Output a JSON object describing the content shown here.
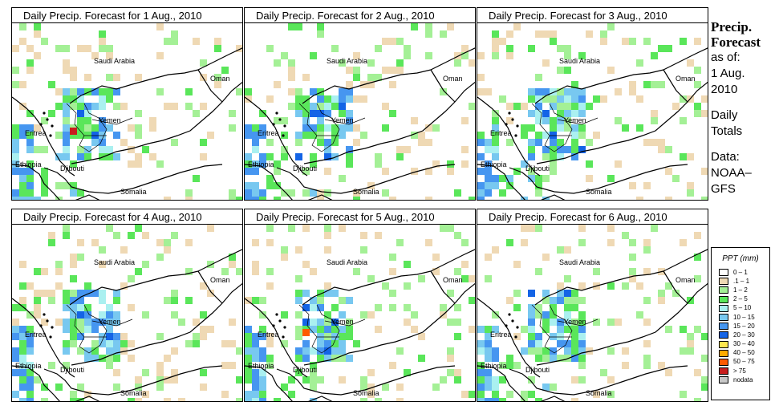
{
  "panels": [
    {
      "title": "Daily Precip. Forecast for  1 Aug., 2010",
      "seed": 11
    },
    {
      "title": "Daily Precip. Forecast for  2 Aug., 2010",
      "seed": 27
    },
    {
      "title": "Daily Precip. Forecast for  3 Aug., 2010",
      "seed": 43
    },
    {
      "title": "Daily Precip. Forecast for  4 Aug., 2010",
      "seed": 59
    },
    {
      "title": "Daily Precip. Forecast for  5 Aug., 2010",
      "seed": 71
    },
    {
      "title": "Daily Precip. Forecast for  6 Aug., 2010",
      "seed": 89
    }
  ],
  "map_labels": {
    "saudi": "Saudi Arabia",
    "oman": "Oman",
    "yemen": "Yemen",
    "eritrea": "Eritrea",
    "ethiopia": "Ethiopia",
    "djibouti": "Djibouti",
    "somalia": "Somalia"
  },
  "side": {
    "title_line1": "Precip.",
    "title_line2": "Forecast",
    "asof": "as of:",
    "date_line1": "1 Aug.",
    "date_line2": "2010",
    "totals_line1": "Daily",
    "totals_line2": "Totals",
    "data_line1": "Data:",
    "data_line2": "NOAA–",
    "data_line3": "GFS"
  },
  "legend": {
    "title": "PPT (mm)",
    "items": [
      {
        "label": "0 – 1",
        "color": "#ffffff"
      },
      {
        "label": ".1 – 1",
        "color": "#efd9b4"
      },
      {
        "label": "1 – 2",
        "color": "#a4f096"
      },
      {
        "label": "2 – 5",
        "color": "#5ae65a"
      },
      {
        "label": "5 – 10",
        "color": "#aaf0f0"
      },
      {
        "label": "10 – 15",
        "color": "#78c8f0"
      },
      {
        "label": "15 – 20",
        "color": "#4696f0"
      },
      {
        "label": "20 – 30",
        "color": "#1464e6"
      },
      {
        "label": "30 – 40",
        "color": "#ffe650"
      },
      {
        "label": "40 – 50",
        "color": "#ffaa00"
      },
      {
        "label": "50 – 75",
        "color": "#ff5a00"
      },
      {
        "label": "> 75",
        "color": "#c81e1e"
      },
      {
        "label": "nodata",
        "color": "#c8c8c8"
      }
    ]
  }
}
